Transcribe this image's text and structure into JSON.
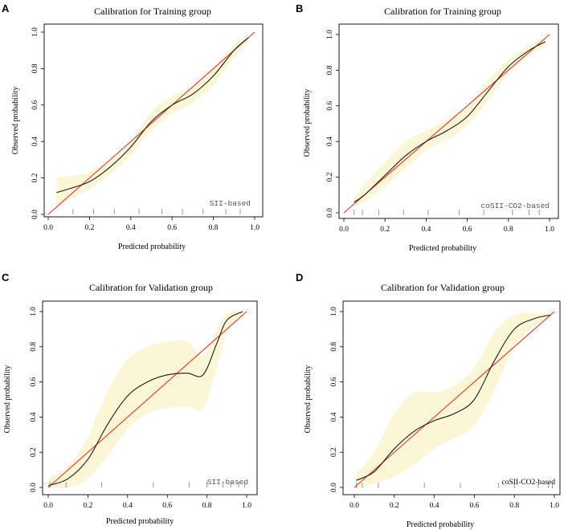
{
  "colors": {
    "band": "#fbf7d6",
    "ideal": "#e8352b",
    "curve": "#1a1a1a",
    "axis": "#000000",
    "rug": "#808080"
  },
  "chart_data": [
    {
      "type": "line",
      "panel": "A",
      "title": "Calibration for Training group",
      "xlabel": "Predicted probability",
      "ylabel": "Observed probability",
      "xlim": [
        0,
        1
      ],
      "ylim": [
        0,
        1
      ],
      "xticks": [
        "0.0",
        "0.2",
        "0.4",
        "0.6",
        "0.8",
        "1.0"
      ],
      "yticks": [
        "0.0",
        "0.2",
        "0.4",
        "0.6",
        "0.8",
        "1.0"
      ],
      "model_label": "SII-based",
      "ideal": {
        "x": [
          0,
          1
        ],
        "y": [
          0,
          1
        ]
      },
      "calibration": {
        "x": [
          0.04,
          0.1,
          0.2,
          0.3,
          0.4,
          0.5,
          0.6,
          0.7,
          0.8,
          0.9,
          0.97
        ],
        "y": [
          0.12,
          0.14,
          0.18,
          0.26,
          0.37,
          0.51,
          0.6,
          0.66,
          0.76,
          0.9,
          0.97
        ]
      },
      "band_upper": [
        0.2,
        0.21,
        0.23,
        0.3,
        0.4,
        0.56,
        0.65,
        0.7,
        0.8,
        0.93,
        0.99
      ],
      "band_lower": [
        0.04,
        0.08,
        0.14,
        0.22,
        0.33,
        0.46,
        0.55,
        0.61,
        0.71,
        0.86,
        0.95
      ],
      "rug": [
        0.12,
        0.22,
        0.32,
        0.44,
        0.55,
        0.65,
        0.75,
        0.86,
        0.93
      ]
    },
    {
      "type": "line",
      "panel": "B",
      "title": "Calibration for Training group",
      "xlabel": "Predicted probability",
      "ylabel": "Observed probability",
      "xlim": [
        0,
        1
      ],
      "ylim": [
        0,
        1
      ],
      "xticks": [
        "0.0",
        "0.2",
        "0.4",
        "0.6",
        "0.8",
        "1.0"
      ],
      "yticks": [
        "0.0",
        "0.2",
        "0.4",
        "0.6",
        "0.8",
        "1.0"
      ],
      "model_label": "coSII-CO2-based",
      "ideal": {
        "x": [
          0,
          1
        ],
        "y": [
          0,
          1
        ]
      },
      "calibration": {
        "x": [
          0.05,
          0.1,
          0.2,
          0.3,
          0.4,
          0.5,
          0.6,
          0.7,
          0.8,
          0.9,
          0.98
        ],
        "y": [
          0.06,
          0.1,
          0.21,
          0.32,
          0.4,
          0.46,
          0.54,
          0.68,
          0.82,
          0.91,
          0.96
        ]
      },
      "band_upper": [
        0.08,
        0.16,
        0.28,
        0.4,
        0.46,
        0.52,
        0.6,
        0.74,
        0.86,
        0.94,
        0.98
      ],
      "band_lower": [
        0.04,
        0.06,
        0.15,
        0.25,
        0.35,
        0.41,
        0.49,
        0.63,
        0.78,
        0.88,
        0.93
      ],
      "rug": [
        0.05,
        0.09,
        0.17,
        0.29,
        0.41,
        0.56,
        0.68,
        0.82,
        0.9,
        0.95
      ]
    },
    {
      "type": "line",
      "panel": "C",
      "title": "Calibration for Validation group",
      "xlabel": "Predicted probability",
      "ylabel": "Observed probability",
      "xlim": [
        0,
        1
      ],
      "ylim": [
        0,
        1
      ],
      "xticks": [
        "0.0",
        "0.2",
        "0.4",
        "0.6",
        "0.8",
        "1.0"
      ],
      "yticks": [
        "0.0",
        "0.2",
        "0.4",
        "0.6",
        "0.8",
        "1.0"
      ],
      "model_label": "SII-based",
      "ideal": {
        "x": [
          0,
          1
        ],
        "y": [
          0,
          1
        ]
      },
      "calibration": {
        "x": [
          0.0,
          0.1,
          0.2,
          0.3,
          0.4,
          0.5,
          0.6,
          0.7,
          0.78,
          0.85,
          0.9,
          0.98
        ],
        "y": [
          0.01,
          0.05,
          0.16,
          0.36,
          0.52,
          0.6,
          0.64,
          0.65,
          0.64,
          0.82,
          0.95,
          1.0
        ]
      },
      "band_upper": [
        0.05,
        0.12,
        0.29,
        0.55,
        0.73,
        0.8,
        0.83,
        0.83,
        0.75,
        0.9,
        0.99,
        1.0
      ],
      "band_lower": [
        0.0,
        0.0,
        0.05,
        0.18,
        0.33,
        0.42,
        0.45,
        0.46,
        0.45,
        0.68,
        0.88,
        0.97
      ],
      "rug": [
        0.01,
        0.09,
        0.27,
        0.53,
        0.71,
        0.8,
        0.88,
        0.92,
        0.96,
        0.99
      ]
    },
    {
      "type": "line",
      "panel": "D",
      "title": "Calibration for Validation group",
      "xlabel": "Predicted probability",
      "ylabel": "Observed probability",
      "xlim": [
        0,
        1
      ],
      "ylim": [
        0,
        1
      ],
      "xticks": [
        "0.0",
        "0.2",
        "0.4",
        "0.6",
        "0.8",
        "1.0"
      ],
      "yticks": [
        "0.0",
        "0.2",
        "0.4",
        "0.6",
        "0.8",
        "1.0"
      ],
      "model_label": "coSII-CO2-based",
      "ideal": {
        "x": [
          0,
          1
        ],
        "y": [
          0,
          1
        ]
      },
      "calibration": {
        "x": [
          0.01,
          0.1,
          0.2,
          0.3,
          0.4,
          0.5,
          0.6,
          0.7,
          0.8,
          0.9,
          0.98
        ],
        "y": [
          0.04,
          0.09,
          0.22,
          0.32,
          0.38,
          0.42,
          0.5,
          0.72,
          0.9,
          0.96,
          0.98
        ]
      },
      "band_upper": [
        0.08,
        0.2,
        0.42,
        0.54,
        0.54,
        0.58,
        0.68,
        0.88,
        0.98,
        0.99,
        0.99
      ],
      "band_lower": [
        0.0,
        0.02,
        0.06,
        0.13,
        0.22,
        0.28,
        0.35,
        0.55,
        0.8,
        0.92,
        0.96
      ],
      "rug": [
        0.01,
        0.04,
        0.12,
        0.35,
        0.53,
        0.72,
        0.8,
        0.92,
        0.97,
        0.99
      ]
    }
  ]
}
